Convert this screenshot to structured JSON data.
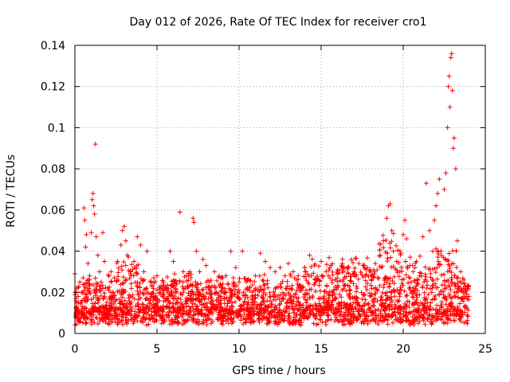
{
  "chart_data": {
    "type": "scatter",
    "title": "Day 012 of 2026, Rate Of TEC Index for receiver cro1",
    "xlabel": "GPS time / hours",
    "ylabel": "ROTI / TECUs",
    "xlim": [
      0,
      25
    ],
    "ylim": [
      0,
      0.14
    ],
    "xticks": [
      0,
      5,
      10,
      15,
      20,
      25
    ],
    "yticks": [
      0,
      0.02,
      0.04,
      0.06,
      0.08,
      0.1,
      0.12,
      0.14
    ],
    "xtick_labels": [
      "0",
      "5",
      "10",
      "15",
      "20",
      "25"
    ],
    "ytick_labels": [
      "0",
      "0.02",
      "0.04",
      "0.06",
      "0.08",
      "0.1",
      "0.12",
      "0.14"
    ],
    "grid": true,
    "marker": "+",
    "color": "#ff0000",
    "note_points": "dense cloud of ROTI samples across 0-24 h; listed points capture the envelope",
    "points": [
      [
        0.0,
        0.029
      ],
      [
        0.1,
        0.022
      ],
      [
        0.2,
        0.018
      ],
      [
        0.3,
        0.025
      ],
      [
        0.4,
        0.02
      ],
      [
        0.5,
        0.027
      ],
      [
        0.55,
        0.061
      ],
      [
        0.6,
        0.055
      ],
      [
        0.65,
        0.042
      ],
      [
        0.7,
        0.048
      ],
      [
        0.8,
        0.034
      ],
      [
        0.9,
        0.028
      ],
      [
        1.0,
        0.049
      ],
      [
        1.05,
        0.065
      ],
      [
        1.1,
        0.068
      ],
      [
        1.15,
        0.062
      ],
      [
        1.2,
        0.058
      ],
      [
        1.25,
        0.092
      ],
      [
        1.3,
        0.047
      ],
      [
        1.4,
        0.038
      ],
      [
        1.5,
        0.03
      ],
      [
        1.6,
        0.025
      ],
      [
        1.7,
        0.049
      ],
      [
        1.8,
        0.035
      ],
      [
        2.0,
        0.022
      ],
      [
        2.2,
        0.03
      ],
      [
        2.4,
        0.027
      ],
      [
        2.6,
        0.035
      ],
      [
        2.8,
        0.043
      ],
      [
        2.9,
        0.05
      ],
      [
        3.0,
        0.052
      ],
      [
        3.1,
        0.045
      ],
      [
        3.2,
        0.038
      ],
      [
        3.4,
        0.03
      ],
      [
        3.6,
        0.035
      ],
      [
        3.8,
        0.047
      ],
      [
        4.0,
        0.043
      ],
      [
        4.2,
        0.03
      ],
      [
        4.4,
        0.04
      ],
      [
        4.6,
        0.025
      ],
      [
        4.8,
        0.027
      ],
      [
        5.0,
        0.028
      ],
      [
        5.2,
        0.02
      ],
      [
        5.5,
        0.022
      ],
      [
        5.8,
        0.04
      ],
      [
        6.0,
        0.035
      ],
      [
        6.2,
        0.024
      ],
      [
        6.4,
        0.059
      ],
      [
        6.6,
        0.03
      ],
      [
        6.8,
        0.028
      ],
      [
        7.0,
        0.03
      ],
      [
        7.2,
        0.056
      ],
      [
        7.25,
        0.054
      ],
      [
        7.4,
        0.04
      ],
      [
        7.6,
        0.03
      ],
      [
        7.8,
        0.036
      ],
      [
        8.0,
        0.033
      ],
      [
        8.2,
        0.025
      ],
      [
        8.5,
        0.03
      ],
      [
        8.8,
        0.023
      ],
      [
        9.0,
        0.027
      ],
      [
        9.2,
        0.028
      ],
      [
        9.5,
        0.04
      ],
      [
        9.8,
        0.032
      ],
      [
        10.0,
        0.025
      ],
      [
        10.2,
        0.04
      ],
      [
        10.5,
        0.026
      ],
      [
        10.8,
        0.02
      ],
      [
        11.0,
        0.028
      ],
      [
        11.3,
        0.039
      ],
      [
        11.6,
        0.035
      ],
      [
        11.9,
        0.032
      ],
      [
        12.2,
        0.03
      ],
      [
        12.5,
        0.032
      ],
      [
        12.8,
        0.028
      ],
      [
        13.0,
        0.034
      ],
      [
        13.3,
        0.03
      ],
      [
        13.6,
        0.028
      ],
      [
        14.0,
        0.032
      ],
      [
        14.3,
        0.038
      ],
      [
        14.6,
        0.033
      ],
      [
        15.0,
        0.035
      ],
      [
        15.3,
        0.03
      ],
      [
        15.6,
        0.033
      ],
      [
        16.0,
        0.031
      ],
      [
        16.3,
        0.036
      ],
      [
        16.6,
        0.032
      ],
      [
        17.0,
        0.03
      ],
      [
        17.3,
        0.034
      ],
      [
        17.6,
        0.033
      ],
      [
        18.0,
        0.031
      ],
      [
        18.3,
        0.034
      ],
      [
        18.6,
        0.038
      ],
      [
        18.8,
        0.045
      ],
      [
        19.0,
        0.056
      ],
      [
        19.1,
        0.062
      ],
      [
        19.2,
        0.063
      ],
      [
        19.3,
        0.05
      ],
      [
        19.4,
        0.04
      ],
      [
        19.6,
        0.035
      ],
      [
        19.8,
        0.03
      ],
      [
        20.0,
        0.048
      ],
      [
        20.1,
        0.055
      ],
      [
        20.2,
        0.046
      ],
      [
        20.4,
        0.033
      ],
      [
        20.6,
        0.03
      ],
      [
        20.8,
        0.035
      ],
      [
        21.0,
        0.028
      ],
      [
        21.2,
        0.047
      ],
      [
        21.4,
        0.073
      ],
      [
        21.6,
        0.05
      ],
      [
        21.8,
        0.04
      ],
      [
        21.9,
        0.055
      ],
      [
        22.0,
        0.062
      ],
      [
        22.1,
        0.068
      ],
      [
        22.2,
        0.075
      ],
      [
        22.3,
        0.04
      ],
      [
        22.5,
        0.07
      ],
      [
        22.6,
        0.078
      ],
      [
        22.7,
        0.1
      ],
      [
        22.75,
        0.12
      ],
      [
        22.8,
        0.125
      ],
      [
        22.85,
        0.11
      ],
      [
        22.9,
        0.134
      ],
      [
        22.95,
        0.136
      ],
      [
        23.0,
        0.118
      ],
      [
        23.05,
        0.09
      ],
      [
        23.1,
        0.095
      ],
      [
        23.2,
        0.08
      ],
      [
        23.3,
        0.045
      ],
      [
        23.5,
        0.03
      ],
      [
        23.7,
        0.026
      ],
      [
        23.9,
        0.022
      ],
      [
        24.0,
        0.018
      ]
    ]
  }
}
